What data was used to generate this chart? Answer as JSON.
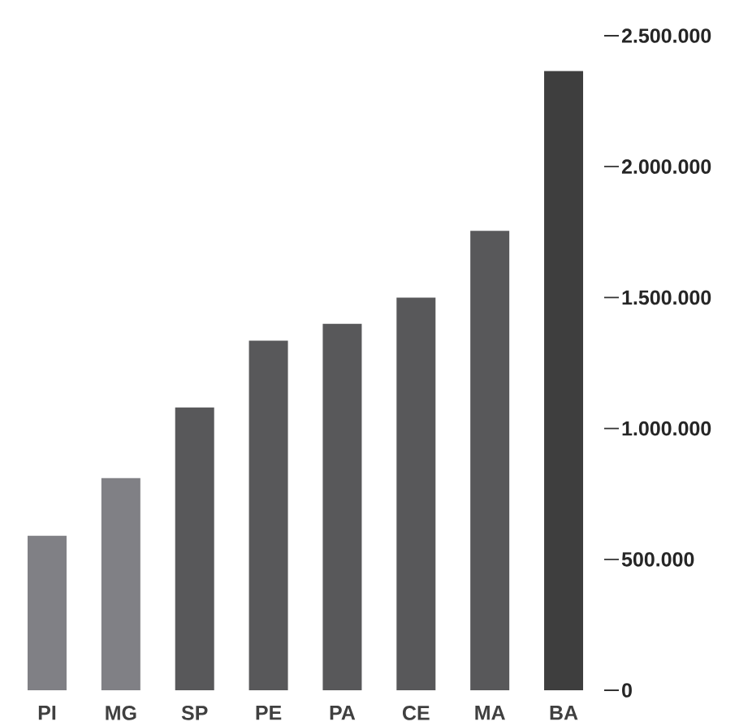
{
  "chart_data": {
    "type": "bar",
    "categories": [
      "PI",
      "MG",
      "SP",
      "PE",
      "PA",
      "CE",
      "MA",
      "BA"
    ],
    "values": [
      590000,
      810000,
      1080000,
      1335000,
      1400000,
      1500000,
      1755000,
      2365000
    ],
    "colors": [
      "#808085",
      "#808085",
      "#58585a",
      "#58585a",
      "#58585a",
      "#58585a",
      "#58585a",
      "#3e3e3e"
    ],
    "ylim": [
      0,
      2500000
    ],
    "yticks": [
      0,
      {
        "value": 500000,
        "label": "500.000"
      },
      {
        "value": 1000000,
        "label": "1.000.000"
      },
      {
        "value": 1500000,
        "label": "1.500.000"
      },
      {
        "value": 2000000,
        "label": "2.000.000"
      },
      {
        "value": 2500000,
        "label": "2.500.000"
      }
    ]
  }
}
